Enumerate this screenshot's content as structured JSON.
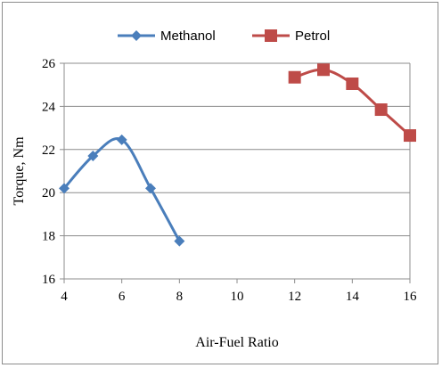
{
  "chart_data": {
    "type": "line",
    "xlabel": "Air-Fuel Ratio",
    "ylabel": "Torque, Nm",
    "xlim": [
      4,
      16
    ],
    "ylim": [
      16,
      26
    ],
    "x_ticks": [
      "4",
      "6",
      "8",
      "10",
      "12",
      "14",
      "16"
    ],
    "y_ticks": [
      "16",
      "18",
      "20",
      "22",
      "24",
      "26"
    ],
    "grid": "horizontal",
    "legend_position": "top",
    "smoothed": true,
    "series": [
      {
        "name": "Methanol",
        "color": "#4a7ebb",
        "marker": "diamond",
        "x": [
          4,
          5,
          6,
          7,
          8
        ],
        "y": [
          20.2,
          21.7,
          22.45,
          20.2,
          17.75
        ]
      },
      {
        "name": "Petrol",
        "color": "#be4b48",
        "marker": "square",
        "x": [
          12,
          13,
          14,
          15,
          16
        ],
        "y": [
          25.35,
          25.7,
          25.05,
          23.85,
          22.65
        ]
      }
    ]
  }
}
